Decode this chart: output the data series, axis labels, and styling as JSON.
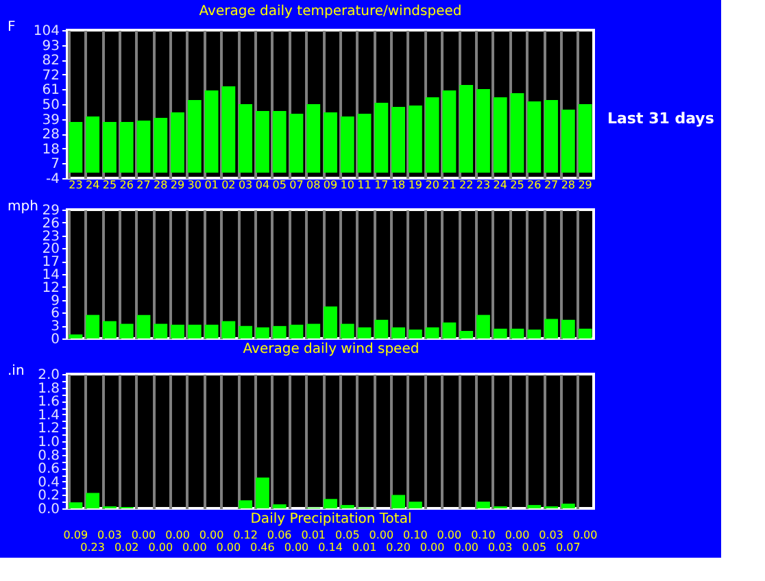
{
  "chart_data": [
    {
      "type": "bar",
      "title": "Average daily temperature/windspeed",
      "ylabel": "F",
      "categories": [
        "23",
        "24",
        "25",
        "26",
        "27",
        "28",
        "29",
        "30",
        "01",
        "02",
        "03",
        "04",
        "05",
        "07",
        "08",
        "09",
        "10",
        "11",
        "17",
        "18",
        "19",
        "20",
        "21",
        "22",
        "23",
        "24",
        "25",
        "26",
        "27",
        "28",
        "29"
      ],
      "values": [
        37,
        41,
        37,
        37,
        38,
        40,
        44,
        53,
        60,
        63,
        50,
        45,
        45,
        43,
        50,
        44,
        41,
        43,
        51,
        48,
        49,
        55,
        60,
        64,
        61,
        55,
        58,
        52,
        53,
        46,
        50
      ],
      "color": "#00ff00",
      "ylim": [
        -4,
        104
      ],
      "yticks": [
        -4,
        {
          "value": 6.8,
          "label": "7"
        },
        {
          "value": 17.6,
          "label": "18"
        },
        {
          "value": 28.4,
          "label": "28"
        },
        {
          "value": 39.2,
          "label": "39"
        },
        50,
        {
          "value": 60.8,
          "label": "61"
        },
        {
          "value": 71.6,
          "label": "72"
        },
        {
          "value": 82.4,
          "label": "82"
        },
        {
          "value": 93.2,
          "label": "93"
        },
        104
      ],
      "grid": "x",
      "annotations": [
        "Last 31 days"
      ]
    },
    {
      "type": "bar",
      "xlabel": "Average daily wind speed",
      "ylabel": "mph",
      "categories": [
        "23",
        "24",
        "25",
        "26",
        "27",
        "28",
        "29",
        "30",
        "01",
        "02",
        "03",
        "04",
        "05",
        "07",
        "08",
        "09",
        "10",
        "11",
        "17",
        "18",
        "19",
        "20",
        "21",
        "22",
        "23",
        "24",
        "25",
        "26",
        "27",
        "28",
        "29"
      ],
      "values": [
        0.9,
        5.3,
        3.9,
        3.3,
        5.3,
        3.3,
        3.1,
        3.1,
        3.1,
        3.9,
        2.8,
        2.5,
        2.8,
        3.1,
        3.3,
        7.2,
        3.3,
        2.5,
        4.2,
        2.5,
        2.0,
        2.5,
        3.6,
        1.7,
        5.3,
        2.2,
        2.2,
        2.0,
        4.4,
        4.2,
        2.2
      ],
      "color": "#00ff00",
      "ylim": [
        0,
        29
      ],
      "yticks": [
        0,
        {
          "value": 2.9,
          "label": "3"
        },
        {
          "value": 5.8,
          "label": "6"
        },
        {
          "value": 8.7,
          "label": "9"
        },
        {
          "value": 11.6,
          "label": "12"
        },
        {
          "value": 14.5,
          "label": "14"
        },
        {
          "value": 17.4,
          "label": "17"
        },
        {
          "value": 20.3,
          "label": "20"
        },
        {
          "value": 23.2,
          "label": "23"
        },
        {
          "value": 26.1,
          "label": "26"
        },
        29
      ],
      "grid": "x",
      "tick_labels": "y"
    },
    {
      "type": "bar",
      "xlabel": "Daily Precipitation Total",
      "ylabel": ".in",
      "categories": [
        "23",
        "24",
        "25",
        "26",
        "27",
        "28",
        "29",
        "30",
        "01",
        "02",
        "03",
        "04",
        "05",
        "07",
        "08",
        "09",
        "10",
        "11",
        "17",
        "18",
        "19",
        "20",
        "21",
        "22",
        "23",
        "24",
        "25",
        "26",
        "27",
        "28",
        "29"
      ],
      "values": [
        0.09,
        0.23,
        0.03,
        0.02,
        0.0,
        0.0,
        0.0,
        0.0,
        0.0,
        0.0,
        0.12,
        0.46,
        0.06,
        0.0,
        0.01,
        0.14,
        0.05,
        0.01,
        0.0,
        0.2,
        0.1,
        0.0,
        0.0,
        0.0,
        0.1,
        0.03,
        0.0,
        0.05,
        0.03,
        0.07,
        0.0
      ],
      "value_labels": [
        "0.09",
        "0.23",
        "0.03",
        "0.02",
        "0.00",
        "0.00",
        "0.00",
        "0.00",
        "0.00",
        "0.00",
        "0.12",
        "0.46",
        "0.06",
        "0.00",
        "0.01",
        "0.14",
        "0.05",
        "0.01",
        "0.00",
        "0.20",
        "0.10",
        "0.00",
        "0.00",
        "0.00",
        "0.10",
        "0.03",
        "0.00",
        "0.05",
        "0.03",
        "0.07",
        "0.00"
      ],
      "color": "#00ff00",
      "ylim": [
        0,
        2.0
      ],
      "yticks": [
        {
          "value": 0,
          "label": "0.0"
        },
        {
          "value": 0.1,
          "label": null
        },
        {
          "value": 0.2,
          "label": "0.2"
        },
        {
          "value": 0.3,
          "label": null
        },
        {
          "value": 0.4,
          "label": "0.4"
        },
        {
          "value": 0.5,
          "label": null
        },
        {
          "value": 0.6,
          "label": "0.6"
        },
        {
          "value": 0.7,
          "label": null
        },
        {
          "value": 0.8,
          "label": "0.8"
        },
        {
          "value": 0.9,
          "label": null
        },
        {
          "value": 1.0,
          "label": "1.0"
        },
        {
          "value": 1.1,
          "label": null
        },
        {
          "value": 1.2,
          "label": "1.2"
        },
        {
          "value": 1.3,
          "label": null
        },
        {
          "value": 1.4,
          "label": "1.4"
        },
        {
          "value": 1.5,
          "label": null
        },
        {
          "value": 1.6,
          "label": "1.6"
        },
        {
          "value": 1.7,
          "label": null
        },
        {
          "value": 1.8,
          "label": "1.8"
        },
        {
          "value": 1.9,
          "label": null
        },
        {
          "value": 2.0,
          "label": "2.0"
        }
      ],
      "grid": "x",
      "tick_labels": "y"
    }
  ]
}
